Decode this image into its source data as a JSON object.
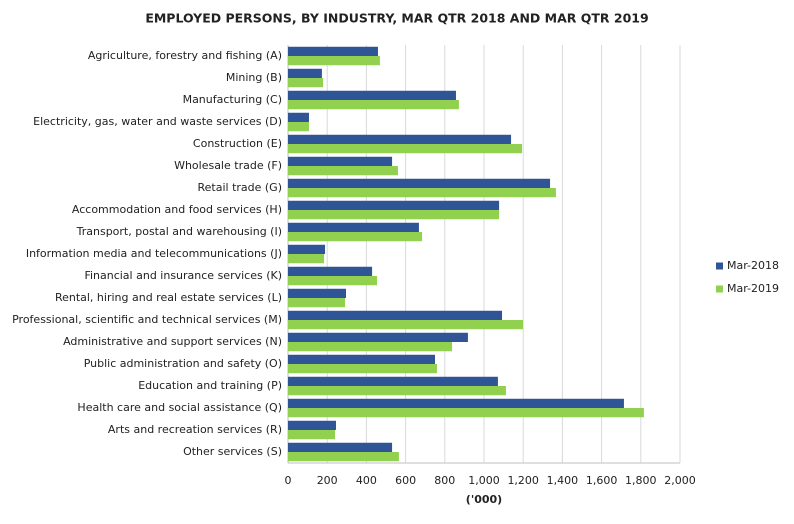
{
  "chart_data": {
    "type": "bar",
    "orientation": "horizontal",
    "title": "EMPLOYED PERSONS, BY INDUSTRY, MAR QTR 2018 AND MAR QTR 2019",
    "x_label": "('000)",
    "categories": [
      "Agriculture, forestry and fishing (A)",
      "Mining (B)",
      "Manufacturing (C)",
      "Electricity, gas, water and waste services (D)",
      "Construction (E)",
      "Wholesale trade (F)",
      "Retail trade (G)",
      "Accommodation and food services (H)",
      "Transport, postal and warehousing (I)",
      "Information media and telecommunications (J)",
      "Financial and insurance services (K)",
      "Rental, hiring and real estate services (L)",
      "Professional, scientific and technical services (M)",
      "Administrative and support services (N)",
      "Public administration and safety (O)",
      "Education and training (P)",
      "Health care and social assistance (Q)",
      "Arts and recreation services (R)",
      "Other services (S)"
    ],
    "series": [
      {
        "name": "Mar-2018",
        "color": "#2f5597",
        "values": [
          459,
          173,
          857,
          107,
          1138,
          531,
          1337,
          1077,
          668,
          189,
          429,
          296,
          1092,
          918,
          750,
          1071,
          1714,
          245,
          531
        ]
      },
      {
        "name": "Mar-2019",
        "color": "#92d050",
        "values": [
          469,
          179,
          872,
          107,
          1194,
          561,
          1367,
          1077,
          684,
          184,
          454,
          291,
          1199,
          837,
          760,
          1112,
          1816,
          240,
          566
        ]
      }
    ],
    "xlim": [
      0,
      2000
    ],
    "xticks": [
      0,
      200,
      400,
      600,
      800,
      {
        "value": 1000,
        "label": "1,000"
      },
      {
        "value": 1200,
        "label": "1,200"
      },
      {
        "value": 1400,
        "label": "1,400"
      },
      {
        "value": 1600,
        "label": "1,600"
      },
      {
        "value": 1800,
        "label": "1,800"
      },
      {
        "value": 2000,
        "label": "2,000"
      }
    ],
    "grid": true,
    "legend": "right"
  }
}
